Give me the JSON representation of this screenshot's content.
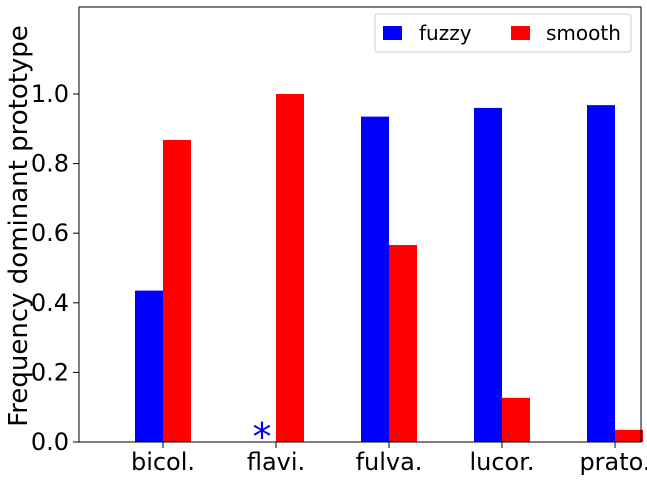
{
  "chart_data": {
    "type": "bar",
    "categories": [
      "bicol.",
      "flavi.",
      "fulva.",
      "lucor.",
      "prato."
    ],
    "series": [
      {
        "name": "fuzzy",
        "color": "#0000ff",
        "values": [
          0.435,
          null,
          0.935,
          0.96,
          0.968
        ]
      },
      {
        "name": "smooth",
        "color": "#ff0000",
        "values": [
          0.868,
          1.0,
          0.566,
          0.127,
          0.035
        ]
      }
    ],
    "annotations": [
      {
        "text": "*",
        "category": "flavi.",
        "series": "fuzzy",
        "y": 0.04,
        "color": "#0000ff"
      }
    ],
    "title": "",
    "xlabel": "",
    "ylabel": "Frequency dominant prototype",
    "ylim": [
      0,
      1.25
    ],
    "yticks": [
      0.0,
      0.2,
      0.4,
      0.6,
      0.8,
      1.0
    ],
    "ytick_labels": [
      "0.0",
      "0.2",
      "0.4",
      "0.6",
      "0.8",
      "1.0"
    ],
    "grid": false,
    "legend_position": "top-right",
    "legend_columns": 2
  }
}
